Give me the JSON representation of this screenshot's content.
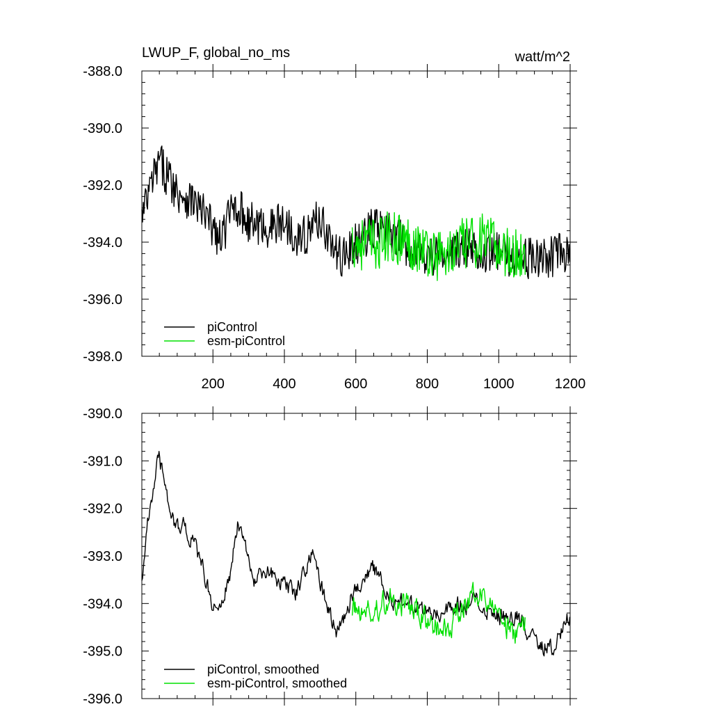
{
  "header": {
    "title": "LWUP_F, global_no_ms",
    "units": "watt/m^2"
  },
  "colors": {
    "piControl": "#000000",
    "esm_piControl": "#00e000",
    "axis": "#000000"
  },
  "chart_data": [
    {
      "type": "line",
      "title": "LWUP_F, global_no_ms",
      "units_label": "watt/m^2",
      "xlabel": "",
      "ylabel": "",
      "xlim": [
        1,
        1200
      ],
      "ylim": [
        -398.0,
        -388.0
      ],
      "x_ticks": [
        200,
        400,
        600,
        800,
        1000,
        1200
      ],
      "x_tick_labels": [
        "200",
        "400",
        "600",
        "800",
        "1000",
        "1200"
      ],
      "y_ticks": [
        -388.0,
        -390.0,
        -392.0,
        -394.0,
        -396.0,
        -398.0
      ],
      "y_tick_labels": [
        "-388.0",
        "-390.0",
        "-392.0",
        "-394.0",
        "-396.0",
        "-398.0"
      ],
      "legend_position": "bottom-left",
      "grid": false,
      "series": [
        {
          "name": "piControl",
          "color": "#000000",
          "x_range": [
            1,
            1200
          ],
          "anchors_x": [
            1,
            30,
            50,
            70,
            100,
            150,
            200,
            220,
            260,
            300,
            350,
            400,
            450,
            500,
            550,
            600,
            650,
            700,
            750,
            800,
            850,
            900,
            950,
            1000,
            1050,
            1100,
            1150,
            1200
          ],
          "anchors_y": [
            -393.2,
            -391.9,
            -391.2,
            -391.6,
            -392.2,
            -392.6,
            -393.5,
            -394.0,
            -392.6,
            -393.3,
            -393.5,
            -393.3,
            -393.9,
            -393.1,
            -394.6,
            -394.1,
            -393.5,
            -393.7,
            -394.2,
            -394.4,
            -394.5,
            -394.2,
            -394.3,
            -394.4,
            -394.5,
            -394.6,
            -394.5,
            -394.3
          ],
          "noise_amplitude": 0.75
        },
        {
          "name": "esm-piControl",
          "color": "#00e000",
          "x_range": [
            590,
            1075
          ],
          "anchors_x": [
            590,
            650,
            700,
            750,
            800,
            850,
            900,
            950,
            1000,
            1050,
            1075
          ],
          "anchors_y": [
            -394.0,
            -394.1,
            -393.8,
            -394.0,
            -394.3,
            -394.5,
            -394.1,
            -393.9,
            -394.2,
            -394.5,
            -394.3
          ],
          "noise_amplitude": 0.95
        }
      ]
    },
    {
      "type": "line",
      "title": "",
      "xlabel": "",
      "ylabel": "",
      "xlim": [
        1,
        1200
      ],
      "ylim": [
        -396.0,
        -390.0
      ],
      "y_ticks": [
        -390.0,
        -391.0,
        -392.0,
        -393.0,
        -394.0,
        -395.0,
        -396.0
      ],
      "y_tick_labels": [
        "-390.0",
        "-391.0",
        "-392.0",
        "-393.0",
        "-394.0",
        "-395.0",
        "-396.0"
      ],
      "legend_position": "bottom-left",
      "grid": false,
      "series": [
        {
          "name": "piControl, smoothed",
          "color": "#000000",
          "x_range": [
            1,
            1200
          ],
          "anchors_x": [
            1,
            20,
            40,
            50,
            70,
            90,
            120,
            150,
            180,
            200,
            220,
            250,
            270,
            300,
            320,
            350,
            380,
            400,
            430,
            450,
            480,
            500,
            530,
            550,
            600,
            650,
            700,
            750,
            800,
            850,
            900,
            950,
            1000,
            1050,
            1100,
            1150,
            1200
          ],
          "anchors_y": [
            -393.4,
            -392.2,
            -391.2,
            -391.0,
            -391.6,
            -392.3,
            -392.4,
            -392.8,
            -393.5,
            -394.0,
            -394.2,
            -393.3,
            -392.3,
            -393.1,
            -393.6,
            -393.3,
            -393.5,
            -393.5,
            -393.8,
            -393.4,
            -392.8,
            -393.6,
            -394.3,
            -394.6,
            -393.6,
            -393.3,
            -393.9,
            -394.1,
            -394.2,
            -394.1,
            -394.0,
            -394.0,
            -394.3,
            -394.3,
            -394.7,
            -395.0,
            -394.2
          ],
          "noise_amplitude": 0.35
        },
        {
          "name": "esm-piControl, smoothed",
          "color": "#00e000",
          "x_range": [
            590,
            1075
          ],
          "anchors_x": [
            590,
            650,
            700,
            750,
            800,
            850,
            900,
            950,
            1000,
            1050,
            1075
          ],
          "anchors_y": [
            -394.1,
            -394.2,
            -393.8,
            -394.1,
            -394.4,
            -394.6,
            -394.0,
            -393.8,
            -394.3,
            -394.7,
            -394.4
          ],
          "noise_amplitude": 0.5
        }
      ]
    }
  ]
}
